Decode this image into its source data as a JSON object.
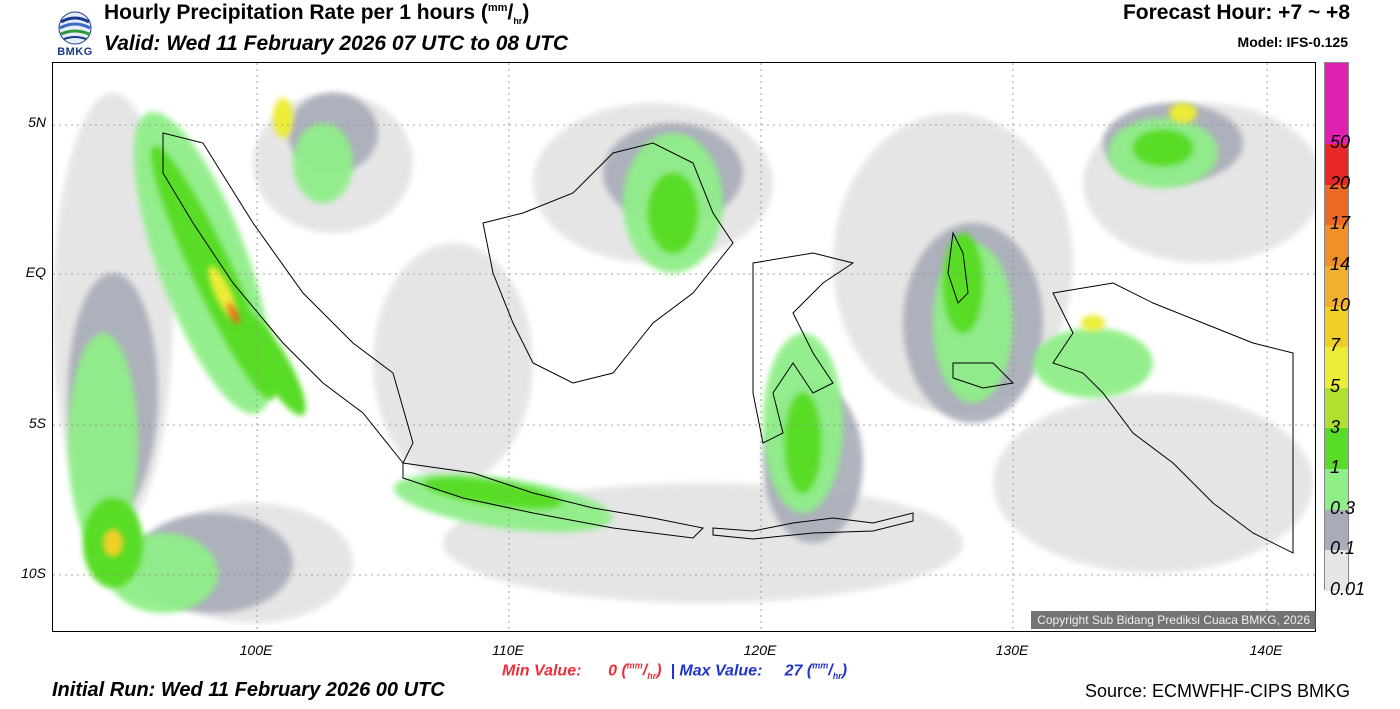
{
  "header": {
    "logo_text": "BMKG",
    "title": "Hourly Precipitation Rate per 1 hours (",
    "title_unit_top": "mm",
    "title_unit_bottom": "hr",
    "title_close": ")",
    "valid": "Valid: Wed 11 February 2026 07 UTC to 08 UTC",
    "forecast_hour": "Forecast Hour: +7 ~ +8",
    "model": "Model: IFS-0.125"
  },
  "map": {
    "lat_labels": [
      "5N",
      "EQ",
      "5S",
      "10S"
    ],
    "lon_labels": [
      "100E",
      "110E",
      "120E",
      "130E",
      "140E"
    ],
    "copyright": "Copyright Sub Bidang Prediksi Cuaca BMKG, 2026"
  },
  "legend": {
    "labels": [
      "50",
      "20",
      "17",
      "14",
      "10",
      "7",
      "5",
      "3",
      "1",
      "0.3",
      "0.1",
      "0.01"
    ],
    "colors": [
      "#e020b0",
      "#e82828",
      "#ec6a24",
      "#f09028",
      "#f2b030",
      "#f0cf28",
      "#ecec38",
      "#b0e030",
      "#58dc28",
      "#90ee88",
      "#a8acb8",
      "#e6e6e6"
    ]
  },
  "stats": {
    "min_label": "Min Value:",
    "min_value": "0",
    "separator": "|",
    "max_label": "Max Value:",
    "max_value": "27",
    "unit_top": "mm",
    "unit_bottom": "hr"
  },
  "footer": {
    "initial_run": "Initial Run: Wed 11 February 2026 00 UTC",
    "source": "Source: ECMWFHF-CIPS BMKG"
  }
}
